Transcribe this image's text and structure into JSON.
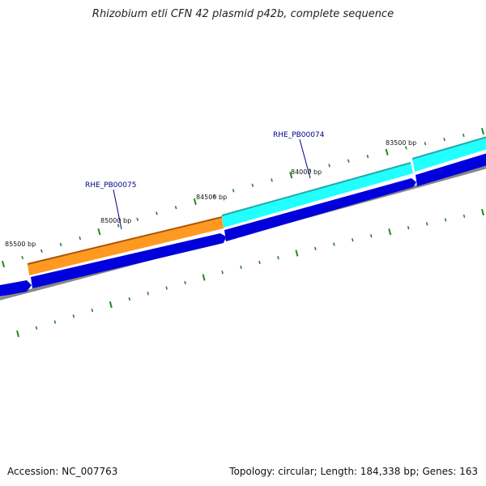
{
  "title": "Rhizobium etli CFN 42 plasmid p42b, complete sequence",
  "accession_label": "Accession: NC_007763",
  "summary_label": "Topology: circular; Length: 184,338 bp; Genes: 163",
  "position_labels": [
    "85500 bp",
    "85000 bp",
    "84500 bp",
    "84000 bp",
    "83500 bp"
  ],
  "gene_labels": [
    "RHE_PB00075",
    "RHE_PB00074"
  ],
  "colors": {
    "backbone": "#888888",
    "cds": "#0000dd",
    "gene_orange": "#ff9922",
    "gene_cyan": "#22ffff",
    "tick": "#228822",
    "gene_label": "#000088"
  }
}
